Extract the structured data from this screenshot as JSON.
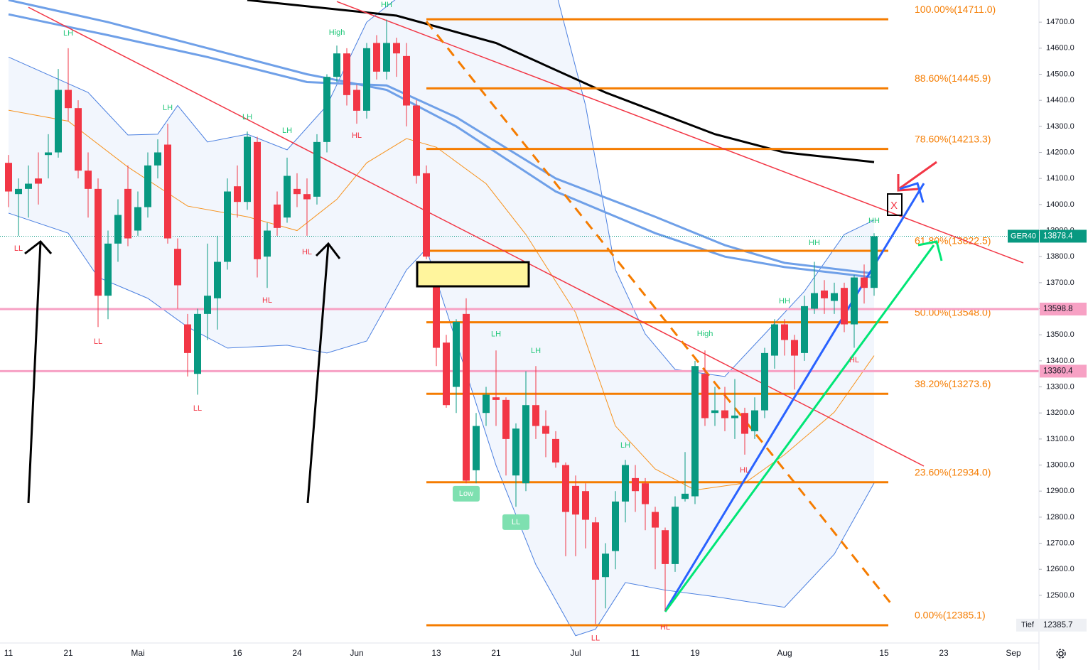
{
  "chart_data": {
    "type": "candlestick",
    "categories": [
      "11",
      null,
      null,
      null,
      null,
      null,
      "21",
      null,
      null,
      null,
      null,
      null,
      null,
      "Mai",
      null,
      null,
      null,
      null,
      null,
      null,
      null,
      null,
      null,
      "16",
      null,
      null,
      null,
      null,
      null,
      "24",
      null,
      null,
      null,
      null,
      null,
      "Jun",
      null,
      null,
      null,
      null,
      null,
      null,
      null,
      "13",
      null,
      null,
      null,
      null,
      null,
      "21",
      null,
      null,
      null,
      null,
      null,
      null,
      null,
      "Jul",
      null,
      null,
      null,
      null,
      null,
      "11",
      null,
      null,
      null,
      null,
      null,
      "19",
      null,
      null,
      null,
      null,
      null,
      null,
      null,
      null,
      "Aug",
      null,
      null,
      null,
      null,
      null,
      null,
      null,
      null,
      null,
      "15",
      null,
      null,
      null,
      null,
      null,
      "23",
      null,
      null,
      null,
      null,
      null,
      null,
      "Sep",
      null
    ],
    "open": [
      14160,
      14040,
      14060,
      14100,
      14190,
      14200,
      14440,
      14370,
      14130,
      14060,
      13650,
      13850,
      14060,
      13900,
      13990,
      14150,
      14230,
      13830,
      13540,
      13350,
      13580,
      13640,
      13780,
      14070,
      14010,
      14240,
      13800,
      14000,
      13950,
      14060,
      14040,
      14030,
      14240,
      14490,
      14580,
      14440,
      14360,
      14620,
      14510,
      14620,
      14570,
      14380,
      14120,
      13700,
      13470,
      13300,
      13580,
      12980,
      13200,
      13260,
      13250,
      12960,
      12930,
      13230,
      13150,
      13100,
      13000,
      12920,
      12900,
      12780,
      12570,
      12670,
      12860,
      12950,
      12930,
      12820,
      12750,
      12620,
      12870,
      12880,
      13350,
      13200,
      13210,
      13180,
      13200,
      13130,
      13210,
      13420,
      13540,
      13480,
      13430,
      13600,
      13670,
      13630,
      13680,
      13540,
      13720,
      13680,
      null,
      null,
      null,
      null,
      null,
      null,
      null,
      null,
      null,
      null,
      null,
      null,
      null,
      null,
      null
    ],
    "high": [
      14190,
      14100,
      14150,
      14200,
      14270,
      14520,
      14600,
      14400,
      14200,
      14100,
      13900,
      14020,
      14150,
      14050,
      14200,
      14250,
      14310,
      13870,
      13580,
      13600,
      13850,
      13880,
      14100,
      14150,
      14280,
      14260,
      13930,
      14050,
      14180,
      14120,
      14100,
      14270,
      14500,
      14610,
      14600,
      14460,
      14620,
      14650,
      14710,
      14640,
      14620,
      14400,
      14150,
      13740,
      13500,
      13560,
      13640,
      13200,
      13300,
      13440,
      13260,
      13160,
      13360,
      13380,
      13210,
      13130,
      13010,
      12960,
      12930,
      12800,
      12700,
      12900,
      13020,
      13000,
      12950,
      12840,
      12760,
      12880,
      13050,
      13400,
      13440,
      13300,
      13300,
      13330,
      13220,
      13260,
      13450,
      13560,
      13560,
      13500,
      13650,
      13780,
      13710,
      13700,
      13700,
      13730,
      13770,
      13890,
      null,
      null,
      null,
      null,
      null,
      null,
      null,
      null,
      null,
      null,
      null,
      null,
      null,
      null,
      null
    ],
    "low": [
      13990,
      13880,
      13950,
      14000,
      14100,
      14180,
      14320,
      14100,
      13950,
      13530,
      13560,
      13780,
      13840,
      13880,
      13950,
      14100,
      13850,
      13600,
      13340,
      13270,
      13480,
      13520,
      13750,
      13950,
      13980,
      13720,
      13680,
      13880,
      13930,
      13990,
      13880,
      14000,
      14200,
      14470,
      14380,
      14310,
      14330,
      14480,
      14480,
      14490,
      14300,
      14080,
      13790,
      13380,
      13220,
      13200,
      12930,
      12930,
      13150,
      13150,
      12960,
      12840,
      12900,
      13100,
      13030,
      12990,
      12650,
      12650,
      12680,
      12390,
      12450,
      12600,
      12780,
      12820,
      12750,
      12600,
      12440,
      12590,
      12860,
      12850,
      13150,
      13150,
      13130,
      13100,
      13040,
      13100,
      13180,
      13370,
      13420,
      13290,
      13400,
      13580,
      13580,
      13580,
      13510,
      13450,
      13620,
      13650,
      null,
      null,
      null,
      null,
      null,
      null,
      null,
      null,
      null,
      null,
      null,
      null,
      null,
      null,
      null
    ],
    "close": [
      14050,
      14060,
      14080,
      14080,
      14200,
      14440,
      14370,
      14130,
      14060,
      13650,
      13850,
      13960,
      13870,
      13990,
      14150,
      14200,
      13870,
      13690,
      13430,
      13580,
      13650,
      13780,
      14050,
      14010,
      14260,
      13790,
      13900,
      13910,
      14110,
      14040,
      14020,
      14240,
      14490,
      14580,
      14420,
      14360,
      14600,
      14510,
      14620,
      14580,
      14380,
      14110,
      13800,
      13450,
      13230,
      13550,
      12940,
      13150,
      13270,
      13250,
      13100,
      13140,
      13230,
      13150,
      13120,
      13010,
      12820,
      12810,
      12790,
      12560,
      12660,
      12860,
      13000,
      12900,
      12850,
      12760,
      12620,
      12840,
      12890,
      13380,
      13180,
      13210,
      13180,
      13190,
      13120,
      13210,
      13430,
      13540,
      13480,
      13420,
      13610,
      13660,
      13640,
      13660,
      13540,
      13720,
      13680,
      13878.4,
      null,
      null,
      null,
      null,
      null,
      null,
      null,
      null,
      null,
      null,
      null,
      null,
      null,
      null,
      null
    ],
    "up_color": "#089981",
    "down_color": "#f23645",
    "ylim": [
      12317,
      14785
    ],
    "yticks": [
      {
        "value": 12500,
        "label": "12500.0"
      },
      {
        "value": 12600,
        "label": "12600.0"
      },
      {
        "value": 12700,
        "label": "12700.0"
      },
      {
        "value": 12800,
        "label": "12800.0"
      },
      {
        "value": 12900,
        "label": "12900.0"
      },
      {
        "value": 13000,
        "label": "13000.0"
      },
      {
        "value": 13100,
        "label": "13100.0"
      },
      {
        "value": 13200,
        "label": "13200.0"
      },
      {
        "value": 13300,
        "label": "13300.0"
      },
      {
        "value": 13400,
        "label": "13400.0"
      },
      {
        "value": 13500,
        "label": "13500.0"
      },
      {
        "value": 13600,
        "label": "13600.0"
      },
      {
        "value": 13700,
        "label": "13700.0"
      },
      {
        "value": 13800,
        "label": "13800.0"
      },
      {
        "value": 13900,
        "label": "13900.0"
      },
      {
        "value": 14000,
        "label": "14000.0"
      },
      {
        "value": 14100,
        "label": "14100.0"
      },
      {
        "value": 14200,
        "label": "14200.0"
      },
      {
        "value": 14300,
        "label": "14300.0"
      },
      {
        "value": 14400,
        "label": "14400.0"
      },
      {
        "value": 14500,
        "label": "14500.0"
      },
      {
        "value": 14600,
        "label": "14600.0"
      },
      {
        "value": 14700,
        "label": "14700.0"
      }
    ],
    "grid": false,
    "fib_color": "#f57c00",
    "fib_range": [
      42,
      89
    ],
    "fib_levels": [
      {
        "value": 14711.0,
        "label": "100.00%(14711.0)"
      },
      {
        "value": 14445.9,
        "label": "88.60%(14445.9)"
      },
      {
        "value": 14213.3,
        "label": "78.60%(14213.3)"
      },
      {
        "value": 13822.5,
        "label": "61.80%(13822.5)"
      },
      {
        "value": 13548.0,
        "label": "50.00%(13548.0)"
      },
      {
        "value": 13273.6,
        "label": "38.20%(13273.6)"
      },
      {
        "value": 12934.0,
        "label": "23.60%(12934.0)"
      },
      {
        "value": 12385.1,
        "label": "0.00%(12385.1)"
      }
    ],
    "price_tags": [
      {
        "value": 13878.4,
        "label": "GER40",
        "color": "#089981",
        "text_color": "#ffffff",
        "line": "dotted"
      },
      {
        "value": 13598.8,
        "color": "#f7a1c4",
        "text_color": "#131722",
        "line": "solid"
      },
      {
        "value": 13360.4,
        "color": "#f7a1c4",
        "text_color": "#131722",
        "line": "solid"
      },
      {
        "value": 12385.7,
        "label": "Tief",
        "color": "#eef0f4",
        "text_color": "#131722",
        "line": "none"
      }
    ],
    "bollinger": {
      "color": "#4a7fe0",
      "fill": "rgba(110,160,235,0.09)",
      "upper": {
        "x": [
          0,
          8,
          12,
          15,
          17,
          20,
          24,
          28,
          32,
          36,
          40,
          55,
          58,
          61,
          64,
          67,
          72,
          76,
          80,
          84,
          87
        ],
        "values": [
          14566,
          14430,
          14267,
          14270,
          14380,
          14240,
          14270,
          14210,
          14380,
          14700,
          14820,
          14820,
          14380,
          13750,
          13503,
          13367,
          13340,
          13503,
          13667,
          13885,
          13940
        ]
      },
      "lower": {
        "x": [
          0,
          6,
          9,
          14,
          18,
          22,
          28,
          32,
          36,
          40,
          42,
          49,
          53,
          57,
          59,
          62,
          66,
          71,
          78,
          83,
          87
        ],
        "values": [
          13967,
          13890,
          13721,
          13640,
          13530,
          13449,
          13460,
          13430,
          13476,
          13749,
          13830,
          12999,
          12618,
          12345,
          12370,
          12549,
          12520,
          12495,
          12454,
          12658,
          12931
        ]
      }
    },
    "overlays": [
      {
        "color": "#000000",
        "width": 3,
        "x": [
          24,
          39,
          49,
          60,
          71,
          78,
          87
        ],
        "values": [
          14785,
          14725,
          14620,
          14430,
          14270,
          14200,
          14163
        ]
      },
      {
        "color": "#6fa0e8",
        "width": 3,
        "x": [
          0,
          10,
          20,
          30,
          38,
          45,
          55,
          65,
          72,
          78,
          87
        ],
        "values": [
          14730,
          14650,
          14566,
          14470,
          14457,
          14335,
          14100,
          13953,
          13844,
          13776,
          13735
        ]
      },
      {
        "color": "#6fa0e8",
        "width": 3,
        "x": [
          0,
          10,
          20,
          30,
          38,
          45,
          55,
          65,
          72,
          78,
          87
        ],
        "values": [
          14785,
          14700,
          14600,
          14500,
          14440,
          14300,
          14050,
          13890,
          13800,
          13760,
          13720
        ]
      },
      {
        "color": "#f7931e",
        "width": 1,
        "x": [
          0,
          6,
          12,
          18,
          24,
          29,
          33,
          36,
          40,
          43,
          48,
          52,
          57,
          61,
          65,
          69,
          74,
          78,
          83,
          87
        ],
        "values": [
          14362,
          14320,
          14144,
          13994,
          13953,
          13900,
          14020,
          14160,
          14253,
          14220,
          14080,
          13885,
          13585,
          13150,
          12985,
          12904,
          12931,
          13040,
          13203,
          13420
        ]
      }
    ],
    "trendlines": [
      {
        "color": "#f23645",
        "width": 1.5,
        "dashed": false,
        "x": [
          33,
          102
        ],
        "values": [
          14779,
          13776
        ]
      },
      {
        "color": "#f23645",
        "width": 1.5,
        "dashed": false,
        "x": [
          2,
          92
        ],
        "values": [
          14757,
          12996
        ]
      },
      {
        "color": "#f57c00",
        "width": 3,
        "dashed": true,
        "x": [
          42,
          89
        ],
        "values": [
          14703,
          12454
        ]
      },
      {
        "color": "#2962ff",
        "width": 3,
        "dashed": false,
        "x": [
          66,
          92
        ],
        "values": [
          12440,
          14081
        ]
      },
      {
        "color": "#00e676",
        "width": 3,
        "dashed": false,
        "x": [
          66,
          93
        ],
        "values": [
          12437,
          13844
        ]
      }
    ],
    "swing_labels": [
      {
        "text": "LH",
        "index": 6,
        "price": 14656,
        "color": "#22c77a"
      },
      {
        "text": "LL",
        "index": 1,
        "price": 13830,
        "color": "#f23645"
      },
      {
        "text": "LL",
        "index": 9,
        "price": 13473,
        "color": "#f23645"
      },
      {
        "text": "LH",
        "index": 16,
        "price": 14370,
        "color": "#22c77a"
      },
      {
        "text": "LL",
        "index": 19,
        "price": 13217,
        "color": "#f23645"
      },
      {
        "text": "LH",
        "index": 24,
        "price": 14335,
        "color": "#22c77a"
      },
      {
        "text": "LH",
        "index": 28,
        "price": 14283,
        "color": "#22c77a"
      },
      {
        "text": "HL",
        "index": 26,
        "price": 13631,
        "color": "#f23645"
      },
      {
        "text": "HL",
        "index": 30,
        "price": 13817,
        "color": "#f23645"
      },
      {
        "text": "High",
        "index": 33,
        "price": 14659,
        "color": "#22c77a"
      },
      {
        "text": "HL",
        "index": 35,
        "price": 14264,
        "color": "#f23645"
      },
      {
        "text": "HH",
        "index": 38,
        "price": 14765,
        "color": "#22c77a"
      },
      {
        "text": "Low",
        "index": 46,
        "price": 12890,
        "color": "#7ee0b0",
        "boxed": true
      },
      {
        "text": "LH",
        "index": 49,
        "price": 13501,
        "color": "#22c77a"
      },
      {
        "text": "LH",
        "index": 53,
        "price": 13438,
        "color": "#22c77a"
      },
      {
        "text": "LL",
        "index": 51,
        "price": 12781,
        "color": "#7ee0b0",
        "boxed": true
      },
      {
        "text": "LH",
        "index": 62,
        "price": 13075,
        "color": "#22c77a"
      },
      {
        "text": "LL",
        "index": 59,
        "price": 12334,
        "color": "#f23645"
      },
      {
        "text": "HL",
        "index": 66,
        "price": 12377,
        "color": "#f23645"
      },
      {
        "text": "High",
        "index": 70,
        "price": 13503,
        "color": "#22c77a"
      },
      {
        "text": "HL",
        "index": 74,
        "price": 12980,
        "color": "#f23645"
      },
      {
        "text": "HH",
        "index": 78,
        "price": 13629,
        "color": "#22c77a"
      },
      {
        "text": "HH",
        "index": 81,
        "price": 13852,
        "color": "#22c77a"
      },
      {
        "text": "HH",
        "index": 87,
        "price": 13937,
        "color": "#22c77a"
      },
      {
        "text": "HL",
        "index": 85,
        "price": 13402,
        "color": "#f23645"
      }
    ],
    "marker_text": "X"
  }
}
